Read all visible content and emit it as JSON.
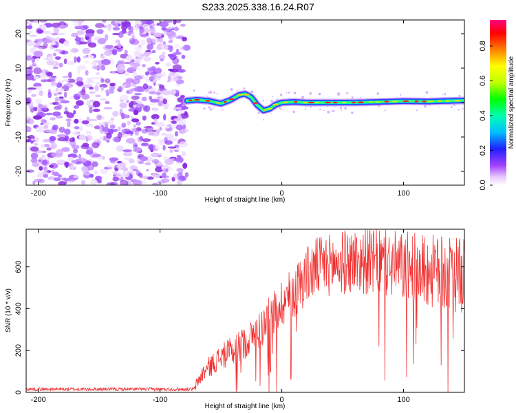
{
  "title": "S233.2025.338.16.24.R07",
  "chart_data": [
    {
      "type": "heatmap",
      "name": "spectrogram",
      "xlabel": "Height of straight line (km)",
      "ylabel": "Frequency (Hz)",
      "xlim": [
        -210,
        150
      ],
      "ylim": [
        -24,
        24
      ],
      "xticks": [
        -200,
        -100,
        0,
        100
      ],
      "xtick_labels": [
        "-200",
        "-100",
        "0",
        "100"
      ],
      "yticks": [
        -20,
        -10,
        0,
        10,
        20
      ],
      "ytick_labels": [
        "-20",
        "-10",
        "0",
        "10",
        "20"
      ],
      "noise_region_x": [
        -210,
        -78
      ],
      "signal_track": {
        "x": [
          -78,
          -70,
          -60,
          -50,
          -42,
          -35,
          -30,
          -25,
          -20,
          -15,
          -10,
          -5,
          0,
          10,
          20,
          40,
          60,
          80,
          100,
          120,
          150
        ],
        "freq": [
          0.5,
          0.8,
          0.5,
          -0.3,
          0.8,
          2.2,
          2.5,
          1.5,
          -0.8,
          -2.3,
          -1.8,
          -0.6,
          0,
          0.2,
          0,
          0,
          0,
          0.2,
          0.4,
          0.3,
          0.6
        ]
      },
      "colorbar": {
        "label": "Normalized spectral amplitude",
        "range": [
          0,
          0.95
        ],
        "ticks": [
          0,
          0.2,
          0.4,
          0.6,
          0.8
        ],
        "tick_labels": [
          "0.0",
          "0.2",
          "0.4",
          "0.6",
          "0.8"
        ]
      }
    },
    {
      "type": "line",
      "name": "snr",
      "xlabel": "Height of straight line (km)",
      "ylabel": "SNR (10 * v/v)",
      "xlim": [
        -210,
        150
      ],
      "ylim": [
        0,
        780
      ],
      "xticks": [
        -200,
        -100,
        0,
        100
      ],
      "xtick_labels": [
        "-200",
        "-100",
        "0",
        "100"
      ],
      "yticks": [
        0,
        200,
        400,
        600
      ],
      "ytick_labels": [
        "0",
        "200",
        "400",
        "600"
      ],
      "color": "#f03030",
      "envelope": {
        "x": [
          -210,
          -72,
          -70,
          -65,
          -60,
          -50,
          -40,
          -30,
          -20,
          -10,
          0,
          10,
          20,
          30,
          40,
          60,
          80,
          100,
          120,
          140,
          150
        ],
        "mean": [
          15,
          15,
          40,
          90,
          120,
          170,
          200,
          240,
          290,
          350,
          430,
          480,
          560,
          600,
          610,
          630,
          620,
          600,
          580,
          560,
          560
        ],
        "spread": [
          8,
          8,
          30,
          40,
          50,
          60,
          70,
          80,
          90,
          110,
          120,
          130,
          140,
          150,
          150,
          160,
          160,
          170,
          180,
          180,
          180
        ]
      }
    }
  ]
}
